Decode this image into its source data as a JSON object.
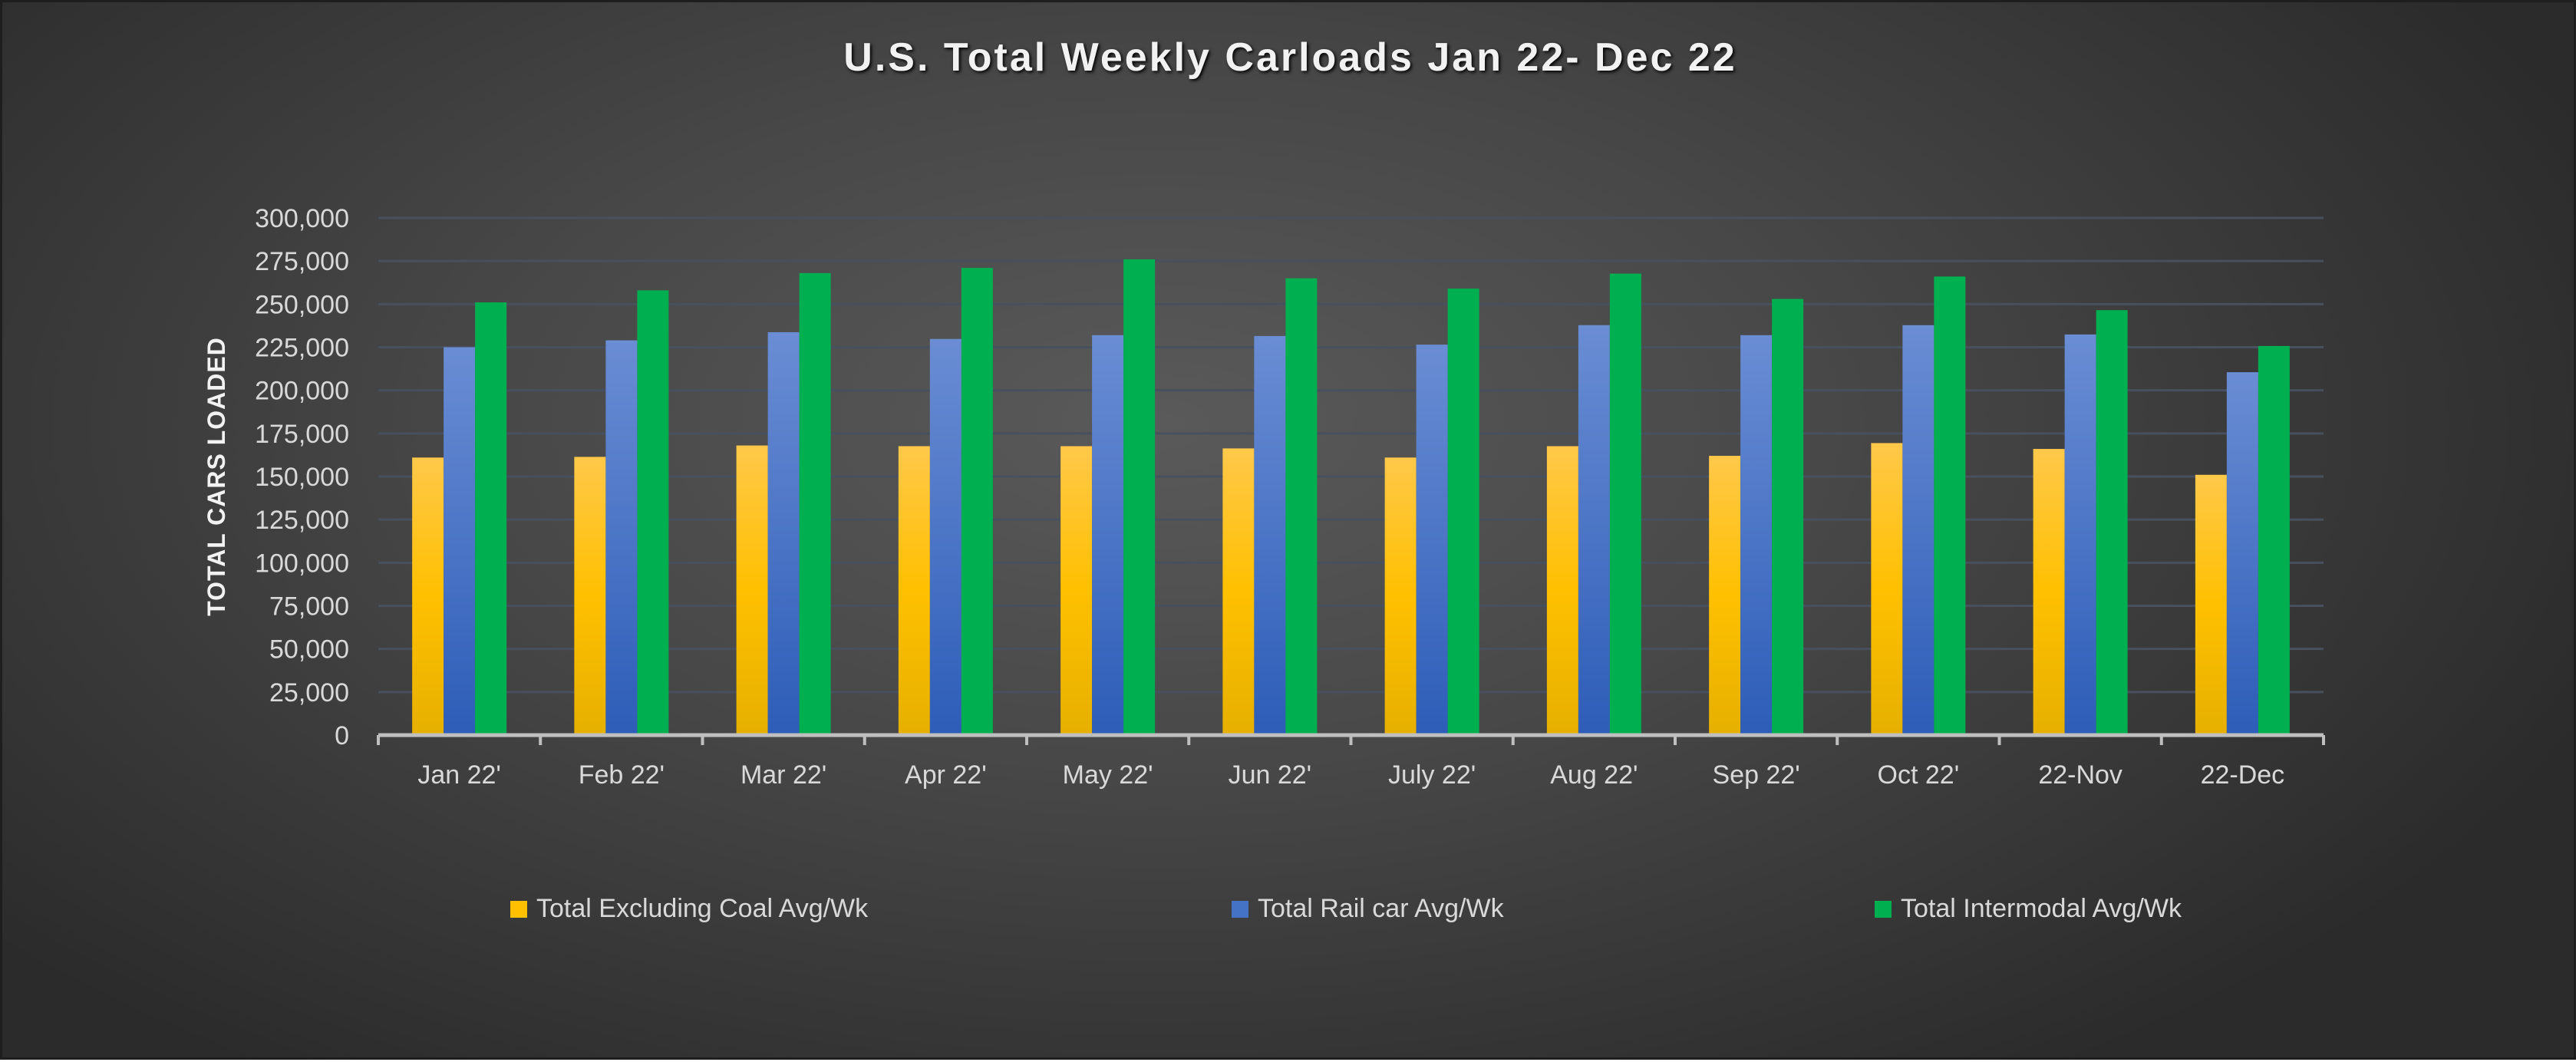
{
  "chart_data": {
    "type": "bar",
    "title": "U.S. Total Weekly Carloads Jan 22- Dec 22",
    "xlabel": "",
    "ylabel": "TOTAL CARS LOADED",
    "ylim": [
      0,
      300000
    ],
    "yticks": [
      "0",
      "25,000",
      "50,000",
      "75,000",
      "100,000",
      "125,000",
      "150,000",
      "175,000",
      "200,000",
      "225,000",
      "250,000",
      "275,000",
      "300,000"
    ],
    "grid": true,
    "legend_position": "bottom",
    "categories": [
      "Jan 22'",
      "Feb 22'",
      "Mar 22'",
      "Apr 22'",
      "May 22'",
      "Jun 22'",
      "July 22'",
      "Aug 22'",
      "Sep 22'",
      "Oct 22'",
      "22-Nov",
      "22-Dec"
    ],
    "series": [
      {
        "name": "Total Excluding Coal Avg/Wk",
        "color": "#ffc000",
        "values": [
          161000,
          161400,
          168000,
          167600,
          167600,
          166300,
          161000,
          167600,
          162000,
          169400,
          166000,
          151000
        ]
      },
      {
        "name": "Total Rail car Avg/Wk",
        "color": "#4472c4",
        "values": [
          225000,
          229000,
          233700,
          229800,
          232000,
          231500,
          226500,
          237800,
          232000,
          237800,
          232400,
          210500
        ]
      },
      {
        "name": "Total Intermodal Avg/Wk",
        "color": "#00b050",
        "values": [
          251000,
          258000,
          268000,
          271000,
          276000,
          265000,
          259000,
          267700,
          253000,
          266000,
          246500,
          225700
        ]
      }
    ]
  }
}
